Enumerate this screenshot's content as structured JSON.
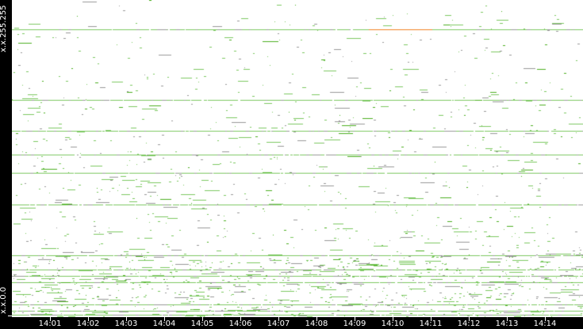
{
  "chart_data": {
    "type": "scatter",
    "title": "",
    "y_axis": {
      "top_label": "x.x.255.255",
      "bottom_label": "x.x.0.0"
    },
    "x_axis": {
      "tick_labels": [
        "14:01",
        "14:02",
        "14:03",
        "14:04",
        "14:05",
        "14:06",
        "14:07",
        "14:08",
        "14:09",
        "14:10",
        "14:11",
        "14:12",
        "14:13",
        "14:14"
      ]
    },
    "grid": false,
    "colors": {
      "primary": "#7cc860",
      "strong": "#4caf20",
      "gray": "#999999",
      "hot": "#f08020",
      "background": "#ffffff",
      "frame": "#000000"
    }
  }
}
